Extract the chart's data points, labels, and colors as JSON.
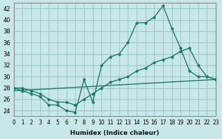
{
  "xlabel": "Humidex (Indice chaleur)",
  "bg_color": "#c8e8e8",
  "grid_color": "#a0c8c8",
  "line_color": "#1a7a6a",
  "xlim": [
    0,
    23
  ],
  "ylim": [
    23,
    43
  ],
  "yticks": [
    24,
    26,
    28,
    30,
    32,
    34,
    36,
    38,
    40,
    42
  ],
  "xticks": [
    0,
    1,
    2,
    3,
    4,
    5,
    6,
    7,
    8,
    9,
    10,
    11,
    12,
    13,
    14,
    15,
    16,
    17,
    18,
    19,
    20,
    21,
    22,
    23
  ],
  "line1_x": [
    0,
    1,
    2,
    3,
    4,
    5,
    6,
    7,
    8,
    9,
    10,
    11,
    12,
    13,
    14,
    15,
    16,
    17,
    18,
    19,
    20,
    21,
    22,
    23
  ],
  "line1_y": [
    28.0,
    27.5,
    27.0,
    26.5,
    25.0,
    25.0,
    24.0,
    23.7,
    29.5,
    25.5,
    32.0,
    33.5,
    34.0,
    36.0,
    39.5,
    39.5,
    40.5,
    42.5,
    38.5,
    35.0,
    31.0,
    30.0,
    30.0,
    29.5
  ],
  "line2_x": [
    0,
    1,
    2,
    3,
    4,
    5,
    6,
    7,
    8,
    9,
    10,
    11,
    12,
    13,
    14,
    15,
    16,
    17,
    18,
    19,
    20,
    21,
    22,
    23
  ],
  "line2_y": [
    28.0,
    28.0,
    27.5,
    27.0,
    26.0,
    25.5,
    25.5,
    25.0,
    26.0,
    27.0,
    28.0,
    29.0,
    29.5,
    30.0,
    31.0,
    31.5,
    32.5,
    33.0,
    33.5,
    34.5,
    35.0,
    32.0,
    30.0,
    29.5
  ],
  "line3_x": [
    0,
    23
  ],
  "line3_y": [
    27.5,
    29.5
  ]
}
